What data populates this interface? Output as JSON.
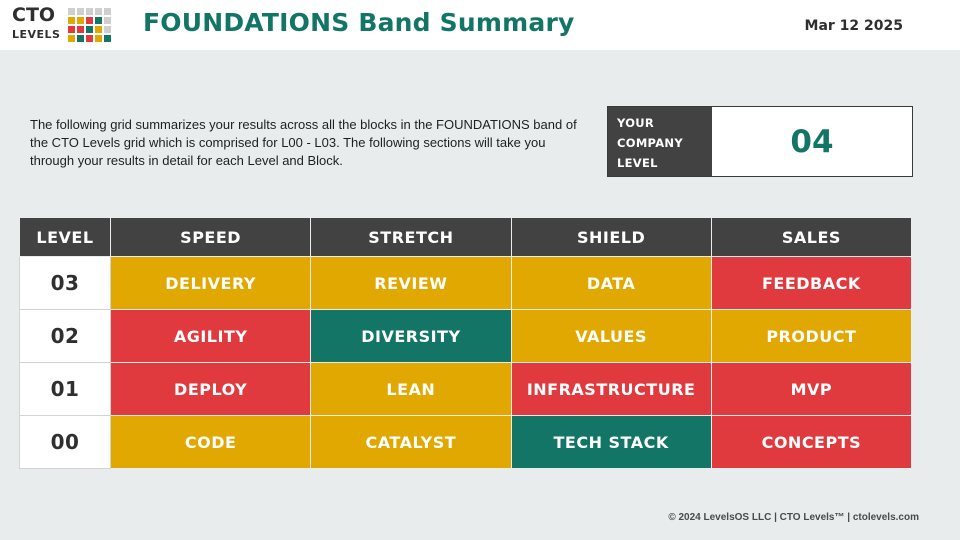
{
  "header": {
    "logo_line1": "CTO",
    "logo_line2": "LEVELS",
    "logo_colors": [
      "#cfcfcf",
      "#cfcfcf",
      "#cfcfcf",
      "#cfcfcf",
      "#cfcfcf",
      "#e0a800",
      "#e0a800",
      "#e0393e",
      "#137566",
      "#cfcfcf",
      "#e0393e",
      "#e0393e",
      "#137566",
      "#e0a800",
      "#cfcfcf",
      "#e0a800",
      "#137566",
      "#e0393e",
      "#e0a800",
      "#137566"
    ],
    "title": "FOUNDATIONS Band Summary",
    "date": "Mar 12 2025"
  },
  "intro": "The following grid summarizes your results across all the blocks in the FOUNDATIONS band of the CTO Levels grid which is comprised for L00 - L03. The following sections will take you through your results in detail for each Level and Block.",
  "company_level": {
    "label_line1": "YOUR",
    "label_line2": "COMPANY",
    "label_line3": "LEVEL",
    "value": "04"
  },
  "colors": {
    "yellow": "#e0a800",
    "red": "#e0393e",
    "green": "#137566"
  },
  "grid": {
    "headers": [
      "LEVEL",
      "SPEED",
      "STRETCH",
      "SHIELD",
      "SALES"
    ],
    "rows": [
      {
        "level": "03",
        "cells": [
          {
            "label": "DELIVERY",
            "status": "yellow"
          },
          {
            "label": "REVIEW",
            "status": "yellow"
          },
          {
            "label": "DATA",
            "status": "yellow"
          },
          {
            "label": "FEEDBACK",
            "status": "red"
          }
        ]
      },
      {
        "level": "02",
        "cells": [
          {
            "label": "AGILITY",
            "status": "red"
          },
          {
            "label": "DIVERSITY",
            "status": "green"
          },
          {
            "label": "VALUES",
            "status": "yellow"
          },
          {
            "label": "PRODUCT",
            "status": "yellow"
          }
        ]
      },
      {
        "level": "01",
        "cells": [
          {
            "label": "DEPLOY",
            "status": "red"
          },
          {
            "label": "LEAN",
            "status": "yellow"
          },
          {
            "label": "INFRASTRUCTURE",
            "status": "red"
          },
          {
            "label": "MVP",
            "status": "red"
          }
        ]
      },
      {
        "level": "00",
        "cells": [
          {
            "label": "CODE",
            "status": "yellow"
          },
          {
            "label": "CATALYST",
            "status": "yellow"
          },
          {
            "label": "TECH STACK",
            "status": "green"
          },
          {
            "label": "CONCEPTS",
            "status": "red"
          }
        ]
      }
    ]
  },
  "footer": "© 2024 LevelsOS LLC | CTO Levels™ | ctolevels.com"
}
